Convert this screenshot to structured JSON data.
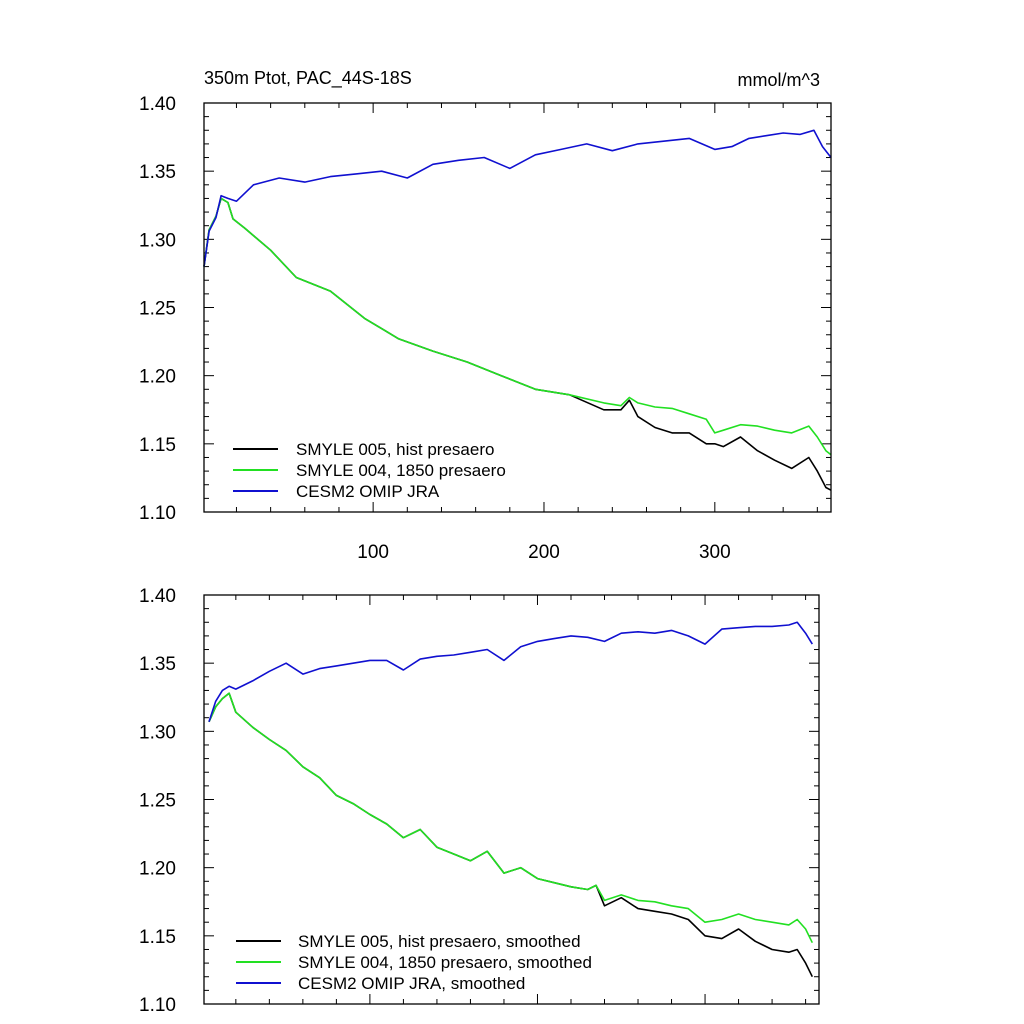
{
  "colors": {
    "black": "#000000",
    "green": "#22e022",
    "blue": "#1010d0",
    "axis": "#000000"
  },
  "chart_data": [
    {
      "type": "line",
      "title": "350m Ptot, PAC_44S-18S",
      "units": "mmol/m^3",
      "xlim": [
        1,
        368
      ],
      "ylim": [
        1.1,
        1.4
      ],
      "yticks": [
        1.1,
        1.15,
        1.2,
        1.25,
        1.3,
        1.35,
        1.4
      ],
      "ytick_labels": [
        "1.10",
        "1.15",
        "1.20",
        "1.25",
        "1.30",
        "1.35",
        "1.40"
      ],
      "xticks": [
        100,
        200,
        300
      ],
      "xtick_labels": [
        "100",
        "200",
        "300"
      ],
      "legend": [
        "SMYLE 005, hist presaero",
        "SMYLE 004, 1850 presaero",
        "CESM2 OMIP JRA"
      ],
      "series": [
        {
          "name": "SMYLE 005, hist presaero",
          "color": "#000000",
          "x": [
            1,
            4,
            8,
            11,
            15,
            18,
            25,
            40,
            55,
            75,
            95,
            115,
            135,
            155,
            175,
            195,
            215,
            235,
            245,
            250,
            255,
            265,
            275,
            285,
            295,
            300,
            305,
            315,
            325,
            335,
            345,
            355,
            360,
            365,
            368
          ],
          "y": [
            1.28,
            1.307,
            1.317,
            1.33,
            1.327,
            1.315,
            1.308,
            1.292,
            1.272,
            1.262,
            1.242,
            1.227,
            1.218,
            1.21,
            1.2,
            1.19,
            1.186,
            1.175,
            1.175,
            1.182,
            1.17,
            1.162,
            1.158,
            1.158,
            1.15,
            1.15,
            1.148,
            1.155,
            1.145,
            1.138,
            1.132,
            1.14,
            1.13,
            1.118,
            1.116
          ]
        },
        {
          "name": "SMYLE 004, 1850 presaero",
          "color": "#22e022",
          "x": [
            1,
            4,
            8,
            11,
            15,
            18,
            25,
            40,
            55,
            75,
            95,
            115,
            135,
            155,
            175,
            195,
            215,
            235,
            245,
            250,
            255,
            265,
            275,
            285,
            295,
            300,
            305,
            315,
            325,
            335,
            345,
            355,
            360,
            365,
            368
          ],
          "y": [
            1.28,
            1.307,
            1.317,
            1.33,
            1.327,
            1.315,
            1.308,
            1.292,
            1.272,
            1.262,
            1.242,
            1.227,
            1.218,
            1.21,
            1.2,
            1.19,
            1.186,
            1.18,
            1.178,
            1.184,
            1.18,
            1.177,
            1.176,
            1.172,
            1.168,
            1.158,
            1.16,
            1.164,
            1.163,
            1.16,
            1.158,
            1.163,
            1.155,
            1.145,
            1.142
          ]
        },
        {
          "name": "CESM2 OMIP JRA",
          "color": "#1010d0",
          "x": [
            1,
            4,
            8,
            11,
            15,
            20,
            30,
            45,
            60,
            75,
            90,
            105,
            120,
            135,
            150,
            165,
            180,
            195,
            210,
            225,
            240,
            255,
            270,
            285,
            300,
            310,
            320,
            330,
            340,
            350,
            358,
            363,
            368
          ],
          "y": [
            1.28,
            1.306,
            1.316,
            1.332,
            1.33,
            1.328,
            1.34,
            1.345,
            1.342,
            1.346,
            1.348,
            1.35,
            1.345,
            1.355,
            1.358,
            1.36,
            1.352,
            1.362,
            1.366,
            1.37,
            1.365,
            1.37,
            1.372,
            1.374,
            1.366,
            1.368,
            1.374,
            1.376,
            1.378,
            1.377,
            1.38,
            1.368,
            1.36
          ]
        }
      ]
    },
    {
      "type": "line",
      "xlim": [
        1,
        368
      ],
      "ylim": [
        1.1,
        1.4
      ],
      "yticks": [
        1.1,
        1.15,
        1.2,
        1.25,
        1.3,
        1.35,
        1.4
      ],
      "ytick_labels": [
        "1.10",
        "1.15",
        "1.20",
        "1.25",
        "1.30",
        "1.35",
        "1.40"
      ],
      "xticks": [
        100,
        200,
        300
      ],
      "legend": [
        "SMYLE 005, hist presaero, smoothed",
        "SMYLE 004, 1850 presaero, smoothed",
        "CESM2 OMIP JRA, smoothed"
      ],
      "series": [
        {
          "name": "SMYLE 005, hist presaero, smoothed",
          "color": "#000000",
          "x": [
            4,
            8,
            12,
            16,
            20,
            30,
            40,
            50,
            60,
            70,
            80,
            90,
            100,
            110,
            120,
            130,
            140,
            150,
            160,
            170,
            180,
            190,
            200,
            210,
            220,
            230,
            235,
            240,
            250,
            260,
            270,
            280,
            290,
            300,
            310,
            320,
            330,
            340,
            350,
            355,
            360,
            364
          ],
          "y": [
            1.307,
            1.318,
            1.324,
            1.328,
            1.314,
            1.303,
            1.294,
            1.286,
            1.274,
            1.266,
            1.253,
            1.247,
            1.239,
            1.232,
            1.222,
            1.228,
            1.215,
            1.21,
            1.205,
            1.212,
            1.196,
            1.2,
            1.192,
            1.189,
            1.186,
            1.184,
            1.187,
            1.172,
            1.178,
            1.17,
            1.168,
            1.166,
            1.162,
            1.15,
            1.148,
            1.155,
            1.146,
            1.14,
            1.138,
            1.14,
            1.13,
            1.12
          ]
        },
        {
          "name": "SMYLE 004, 1850 presaero, smoothed",
          "color": "#22e022",
          "x": [
            4,
            8,
            12,
            16,
            20,
            30,
            40,
            50,
            60,
            70,
            80,
            90,
            100,
            110,
            120,
            130,
            140,
            150,
            160,
            170,
            180,
            190,
            200,
            210,
            220,
            230,
            235,
            240,
            250,
            260,
            270,
            280,
            290,
            300,
            310,
            320,
            330,
            340,
            350,
            355,
            360,
            364
          ],
          "y": [
            1.307,
            1.318,
            1.324,
            1.328,
            1.314,
            1.303,
            1.294,
            1.286,
            1.274,
            1.266,
            1.253,
            1.247,
            1.239,
            1.232,
            1.222,
            1.228,
            1.215,
            1.21,
            1.205,
            1.212,
            1.196,
            1.2,
            1.192,
            1.189,
            1.186,
            1.184,
            1.187,
            1.176,
            1.18,
            1.176,
            1.175,
            1.172,
            1.17,
            1.16,
            1.162,
            1.166,
            1.162,
            1.16,
            1.158,
            1.162,
            1.155,
            1.145
          ]
        },
        {
          "name": "CESM2 OMIP JRA, smoothed",
          "color": "#1010d0",
          "x": [
            4,
            8,
            12,
            16,
            20,
            30,
            40,
            50,
            60,
            70,
            80,
            90,
            100,
            110,
            120,
            130,
            140,
            150,
            160,
            170,
            180,
            190,
            200,
            210,
            220,
            230,
            240,
            250,
            260,
            270,
            280,
            290,
            300,
            310,
            320,
            330,
            340,
            350,
            355,
            360,
            364
          ],
          "y": [
            1.307,
            1.322,
            1.33,
            1.333,
            1.331,
            1.337,
            1.344,
            1.35,
            1.342,
            1.346,
            1.348,
            1.35,
            1.352,
            1.352,
            1.345,
            1.353,
            1.355,
            1.356,
            1.358,
            1.36,
            1.352,
            1.362,
            1.366,
            1.368,
            1.37,
            1.369,
            1.366,
            1.372,
            1.373,
            1.372,
            1.374,
            1.37,
            1.364,
            1.375,
            1.376,
            1.377,
            1.377,
            1.378,
            1.38,
            1.372,
            1.364
          ]
        }
      ]
    }
  ]
}
